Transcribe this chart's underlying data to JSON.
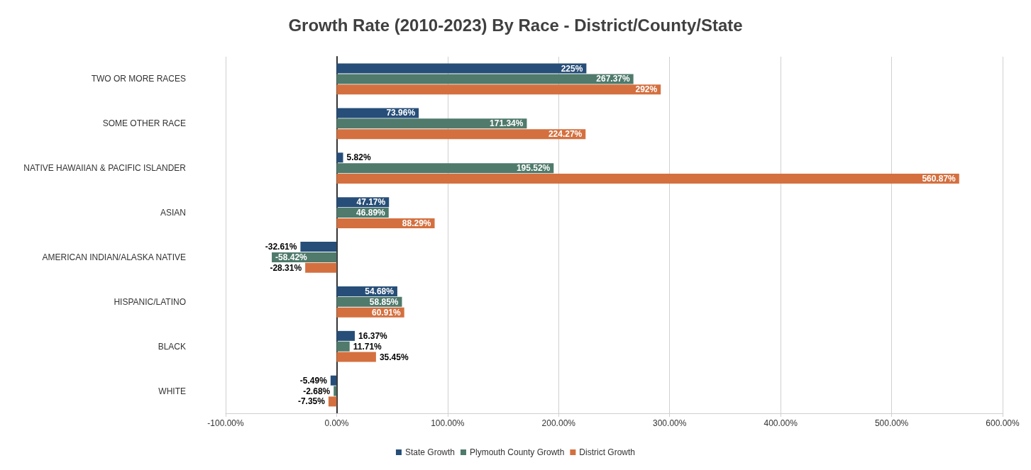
{
  "chart_data": {
    "type": "bar",
    "orientation": "horizontal",
    "title": "Growth Rate (2010-2023) By Race - District/County/State",
    "categories": [
      "TWO OR MORE RACES",
      "SOME OTHER RACE",
      "NATIVE HAWAIIAN & PACIFIC ISLANDER",
      "ASIAN",
      "AMERICAN INDIAN/ALASKA NATIVE",
      "HISPANIC/LATINO",
      "BLACK",
      "WHITE"
    ],
    "series": [
      {
        "name": "State Growth",
        "color": "#264e78",
        "values": [
          225,
          73.96,
          5.82,
          47.17,
          -32.61,
          54.68,
          16.37,
          -5.49
        ],
        "value_labels": [
          "225%",
          "73.96%",
          "5.82%",
          "47.17%",
          "-32.61%",
          "54.68%",
          "16.37%",
          "-5.49%"
        ]
      },
      {
        "name": "Plymouth County Growth",
        "color": "#4f7a6c",
        "values": [
          267.37,
          171.34,
          195.52,
          46.89,
          -58.42,
          58.85,
          11.71,
          -2.68
        ],
        "value_labels": [
          "267.37%",
          "171.34%",
          "195.52%",
          "46.89%",
          "-58.42%",
          "58.85%",
          "11.71%",
          "-2.68%"
        ]
      },
      {
        "name": "District Growth",
        "color": "#d4703f",
        "values": [
          292,
          224.27,
          560.87,
          88.29,
          -28.31,
          60.91,
          35.45,
          -7.35
        ],
        "value_labels": [
          "292%",
          "224.27%",
          "560.87%",
          "88.29%",
          "-28.31%",
          "60.91%",
          "35.45%",
          "-7.35%"
        ]
      }
    ],
    "xlim": [
      -100,
      600
    ],
    "xticks": [
      {
        "value": -100,
        "label": "-100.00%"
      },
      {
        "value": 0,
        "label": "0.00%"
      },
      {
        "value": 100,
        "label": "100.00%"
      },
      {
        "value": 200,
        "label": "200.00%"
      },
      {
        "value": 300,
        "label": "300.00%"
      },
      {
        "value": 400,
        "label": "400.00%"
      },
      {
        "value": 500,
        "label": "500.00%"
      },
      {
        "value": 600,
        "label": "600.00%"
      }
    ],
    "grid": "x",
    "legend": "bottom"
  }
}
